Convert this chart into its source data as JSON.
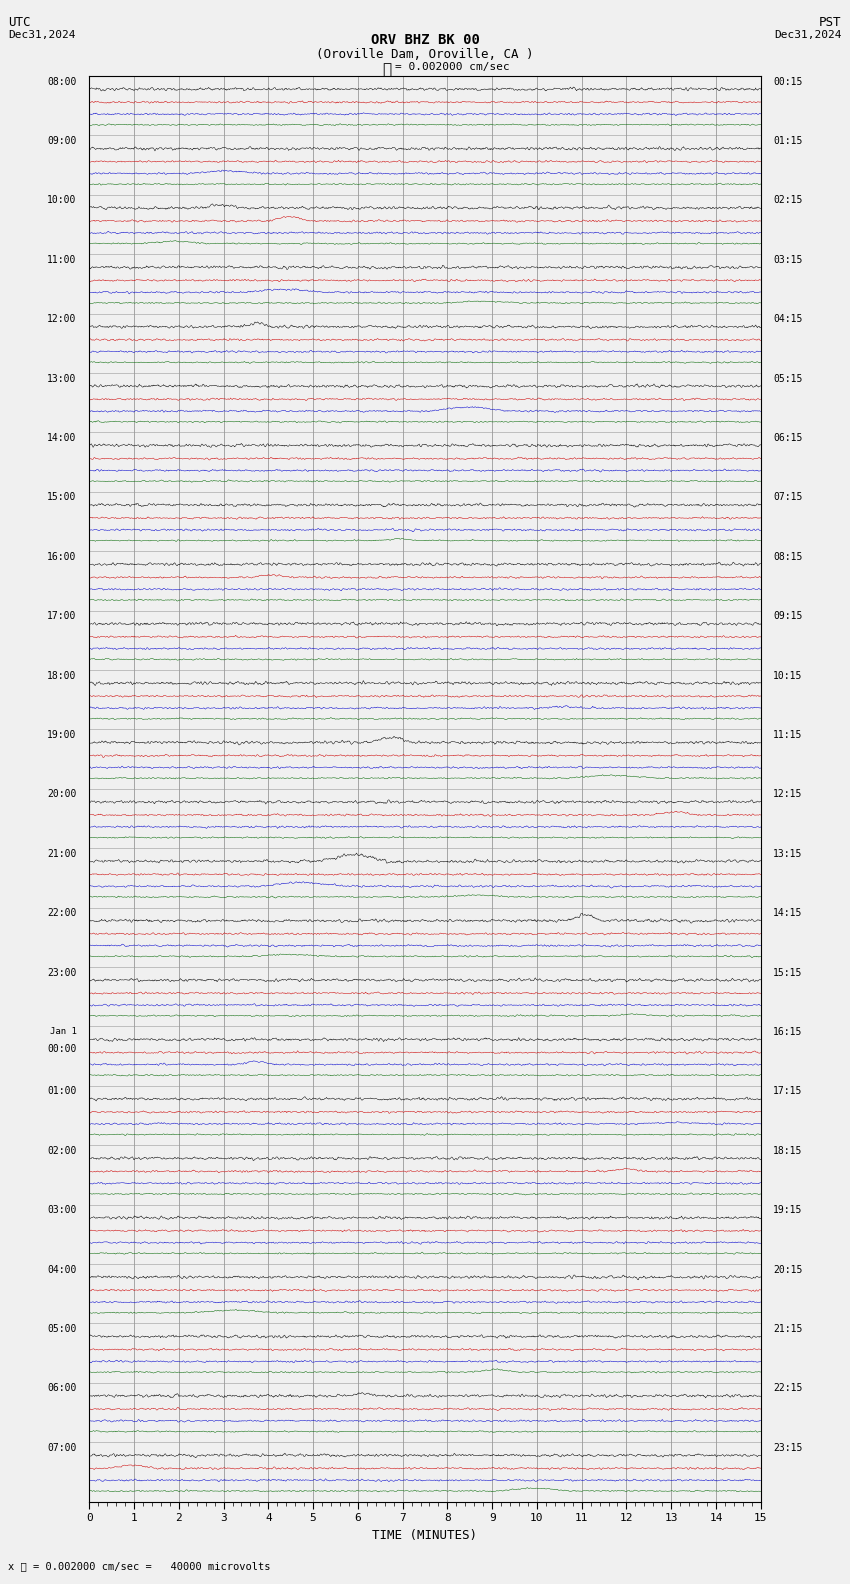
{
  "title_line1": "ORV BHZ BK 00",
  "title_line2": "(Oroville Dam, Oroville, CA )",
  "scale_label": "= 0.002000 cm/sec",
  "utc_label": "UTC",
  "utc_date": "Dec31,2024",
  "pst_label": "PST",
  "pst_date": "Dec31,2024",
  "xlabel": "TIME (MINUTES)",
  "bottom_label": "= 0.002000 cm/sec =   40000 microvolts",
  "x_min": 0,
  "x_max": 15,
  "x_major_ticks": [
    0,
    1,
    2,
    3,
    4,
    5,
    6,
    7,
    8,
    9,
    10,
    11,
    12,
    13,
    14,
    15
  ],
  "background_color": "#f0f0f0",
  "grid_color": "#999999",
  "trace_colors": [
    "#000000",
    "#cc0000",
    "#0000cc",
    "#006600"
  ],
  "utc_times": [
    "08:00",
    "09:00",
    "10:00",
    "11:00",
    "12:00",
    "13:00",
    "14:00",
    "15:00",
    "16:00",
    "17:00",
    "18:00",
    "19:00",
    "20:00",
    "21:00",
    "22:00",
    "23:00",
    "Jan 1\n00:00",
    "01:00",
    "02:00",
    "03:00",
    "04:00",
    "05:00",
    "06:00",
    "07:00"
  ],
  "pst_times": [
    "00:15",
    "01:15",
    "02:15",
    "03:15",
    "04:15",
    "05:15",
    "06:15",
    "07:15",
    "08:15",
    "09:15",
    "10:15",
    "11:15",
    "12:15",
    "13:15",
    "14:15",
    "15:15",
    "16:15",
    "17:15",
    "18:15",
    "19:15",
    "20:15",
    "21:15",
    "22:15",
    "23:15"
  ],
  "n_rows": 24,
  "traces_per_row": 4,
  "fig_width": 8.5,
  "fig_height": 15.84,
  "dpi": 100
}
